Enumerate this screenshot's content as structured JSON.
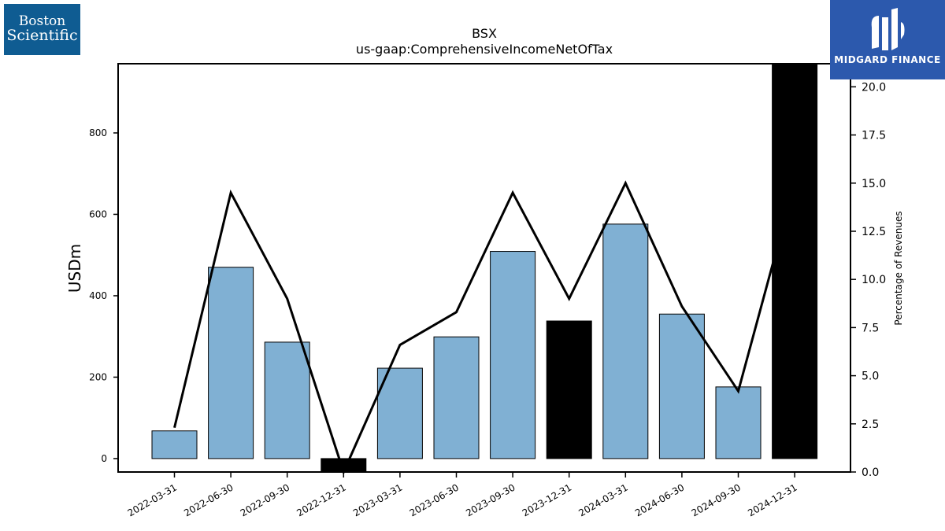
{
  "brand": {
    "left_logo_line1": "Boston",
    "left_logo_line2": "Scientific",
    "right_logo_text": "MIDGARD FINANCE"
  },
  "chart_data": {
    "type": "bar",
    "title": "BSX",
    "subtitle": "us-gaap:ComprehensiveIncomeNetOfTax",
    "ylabel": "USDm",
    "y2label": "Percentage of Revenues",
    "categories": [
      "2022-03-31",
      "2022-06-30",
      "2022-09-30",
      "2022-12-31",
      "2023-03-31",
      "2023-06-30",
      "2023-09-30",
      "2023-12-31",
      "2024-03-31",
      "2024-06-30",
      "2024-09-30",
      "2024-12-31"
    ],
    "series": [
      {
        "values": [
          68,
          470,
          286,
          -35,
          222,
          299,
          509,
          338,
          576,
          355,
          176,
          1000
        ],
        "colors": [
          "#80b0d3",
          "#80b0d3",
          "#80b0d3",
          "#000000",
          "#80b0d3",
          "#80b0d3",
          "#80b0d3",
          "#000000",
          "#80b0d3",
          "#80b0d3",
          "#80b0d3",
          "#000000"
        ]
      },
      {
        "values": [
          2.3,
          14.5,
          9.0,
          0.0,
          6.6,
          8.3,
          14.5,
          9.0,
          15.0,
          8.6,
          4.2,
          15.0
        ],
        "axis": "right",
        "style": "line"
      }
    ],
    "ylim": [
      -33,
      970
    ],
    "y2lim": [
      0,
      21.2
    ],
    "yticks": [
      0,
      200,
      400,
      600,
      800
    ],
    "y2ticks": [
      "0.0",
      "2.5",
      "5.0",
      "7.5",
      "10.0",
      "12.5",
      "15.0",
      "17.5",
      "20.0"
    ],
    "grid": false
  }
}
